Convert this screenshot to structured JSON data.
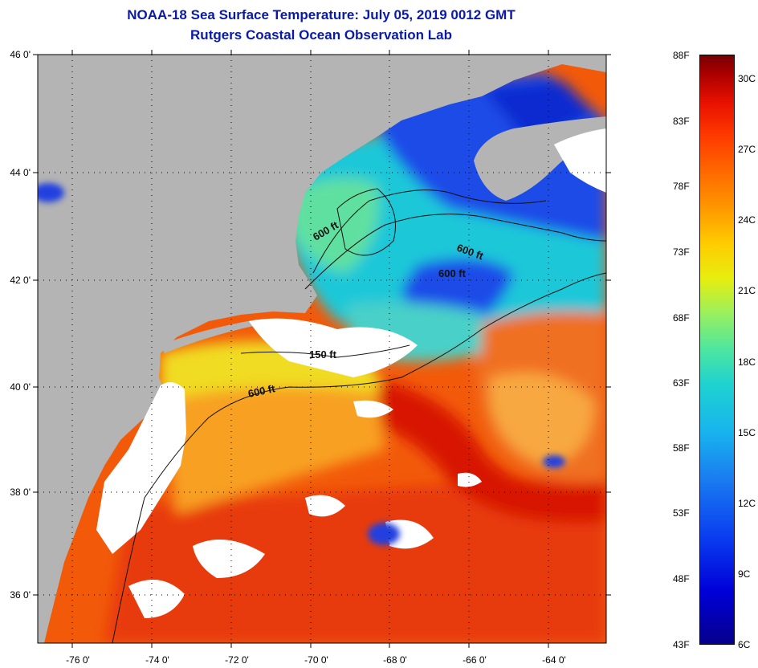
{
  "title_line1": "NOAA-18 Sea Surface Temperature:  July 05, 2019 0012 GMT",
  "title_line2": "Rutgers Coastal Ocean Observation Lab",
  "lat_labels": [
    "46 0'",
    "44 0'",
    "42 0'",
    "40 0'",
    "38 0'",
    "36 0'"
  ],
  "lon_labels": [
    "-76 0'",
    "-74 0'",
    "-72 0'",
    "-70 0'",
    "-68 0'",
    "-66 0'",
    "-64 0'"
  ],
  "isobath_labels": [
    "600 ft",
    "600 ft",
    "600 ft",
    "150 ft",
    "600 ft"
  ],
  "colorbar": {
    "fahrenheit": [
      "88F",
      "83F",
      "78F",
      "73F",
      "68F",
      "63F",
      "58F",
      "53F",
      "48F",
      "43F"
    ],
    "celsius": [
      "30C",
      "27C",
      "24C",
      "21C",
      "18C",
      "15C",
      "12C",
      "9C",
      "6C"
    ]
  },
  "colors": {
    "land": "#b4b4b4",
    "cloud": "#ffffff",
    "title": "#0a1aa8",
    "warm": "#f04000",
    "cold": "#1030d0"
  }
}
